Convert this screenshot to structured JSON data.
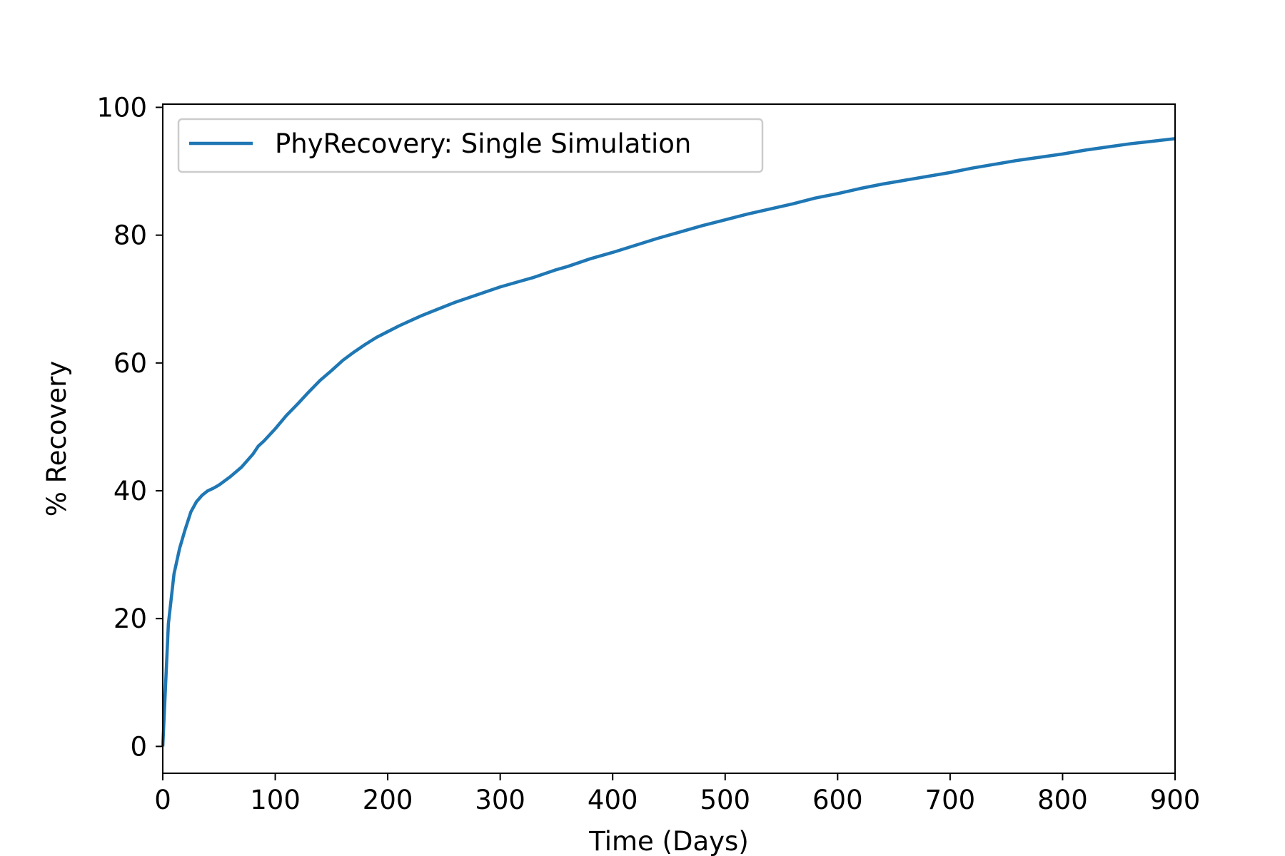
{
  "chart_data": {
    "type": "line",
    "title": "",
    "xlabel": "Time (Days)",
    "ylabel": "% Recovery",
    "xlim": [
      0,
      900
    ],
    "ylim": [
      -4.2,
      100.5
    ],
    "xticks": [
      0,
      100,
      200,
      300,
      400,
      500,
      600,
      700,
      800,
      900
    ],
    "yticks": [
      0,
      20,
      40,
      60,
      80,
      100
    ],
    "grid": false,
    "legend_position": "top-left",
    "colors": {
      "series": "#1f77b4",
      "axes": "#000000",
      "legend_border": "#cccccc"
    },
    "series": [
      {
        "name": "PhyRecovery: Single Simulation",
        "x": [
          0,
          5,
          10,
          15,
          20,
          25,
          30,
          35,
          40,
          45,
          50,
          60,
          70,
          80,
          85,
          90,
          100,
          110,
          120,
          130,
          140,
          150,
          160,
          170,
          180,
          190,
          200,
          210,
          220,
          230,
          240,
          250,
          260,
          270,
          280,
          290,
          300,
          310,
          320,
          330,
          340,
          350,
          360,
          380,
          400,
          420,
          440,
          460,
          480,
          500,
          520,
          540,
          560,
          580,
          600,
          620,
          640,
          660,
          680,
          700,
          720,
          740,
          760,
          780,
          800,
          820,
          840,
          860,
          880,
          900
        ],
        "y": [
          0,
          19.2,
          27.0,
          31.0,
          34.0,
          36.7,
          38.3,
          39.3,
          40.0,
          40.4,
          40.9,
          42.2,
          43.7,
          45.7,
          47.0,
          47.8,
          49.7,
          51.8,
          53.6,
          55.5,
          57.3,
          58.8,
          60.4,
          61.7,
          62.9,
          64.0,
          64.9,
          65.8,
          66.6,
          67.4,
          68.1,
          68.8,
          69.5,
          70.1,
          70.7,
          71.3,
          71.9,
          72.4,
          72.9,
          73.4,
          74.0,
          74.6,
          75.1,
          76.3,
          77.3,
          78.4,
          79.5,
          80.5,
          81.5,
          82.4,
          83.3,
          84.1,
          84.9,
          85.8,
          86.5,
          87.3,
          88.0,
          88.6,
          89.2,
          89.8,
          90.5,
          91.1,
          91.7,
          92.2,
          92.7,
          93.3,
          93.8,
          94.3,
          94.7,
          95.1
        ]
      }
    ]
  }
}
